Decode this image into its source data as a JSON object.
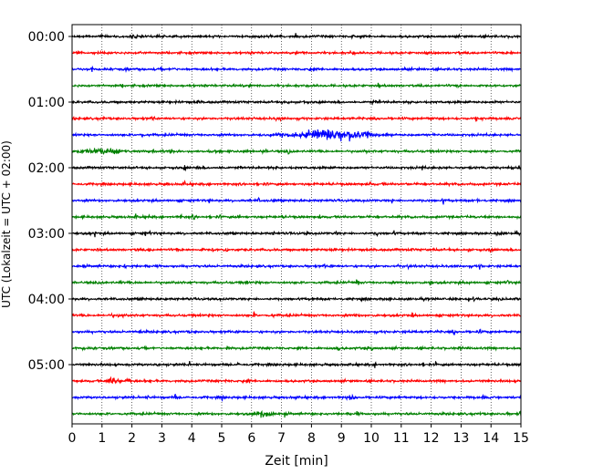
{
  "chart_data": {
    "type": "line",
    "xlabel": "Zeit  [min]",
    "ylabel": "UTC (Lokalzeit = UTC + 02:00)",
    "xlim": [
      0,
      15
    ],
    "x_ticks": [
      0,
      1,
      2,
      3,
      4,
      5,
      6,
      7,
      8,
      9,
      10,
      11,
      12,
      13,
      14,
      15
    ],
    "x_tick_labels": [
      "0",
      "1",
      "2",
      "3",
      "4",
      "5",
      "6",
      "7",
      "8",
      "9",
      "10",
      "11",
      "12",
      "13",
      "14",
      "15"
    ],
    "vertical_grid": true,
    "grid_style": "dotted",
    "trace_interval_minutes": 15,
    "trace_count": 24,
    "trace_colors": [
      "#000000",
      "#ff0000",
      "#0000ff",
      "#008000"
    ],
    "y_ticks": [
      {
        "trace_index": 0,
        "label": "00:00"
      },
      {
        "trace_index": 4,
        "label": "01:00"
      },
      {
        "trace_index": 8,
        "label": "02:00"
      },
      {
        "trace_index": 12,
        "label": "03:00"
      },
      {
        "trace_index": 16,
        "label": "04:00"
      },
      {
        "trace_index": 20,
        "label": "05:00"
      }
    ],
    "events": [
      {
        "trace_index": 6,
        "time_min": 9.0,
        "amplitude": "large",
        "start_min": 6.3,
        "end_min": 10.8
      },
      {
        "trace_index": 7,
        "time_min": 1.0,
        "amplitude": "medium",
        "start_min": 0.0,
        "end_min": 2.2
      },
      {
        "trace_index": 21,
        "time_min": 1.3,
        "amplitude": "medium",
        "start_min": 1.0,
        "end_min": 1.7
      },
      {
        "trace_index": 22,
        "time_min": 9.3,
        "amplitude": "small",
        "start_min": 9.1,
        "end_min": 9.5
      },
      {
        "trace_index": 23,
        "time_min": 6.4,
        "amplitude": "small",
        "start_min": 5.8,
        "end_min": 7.0
      }
    ]
  }
}
